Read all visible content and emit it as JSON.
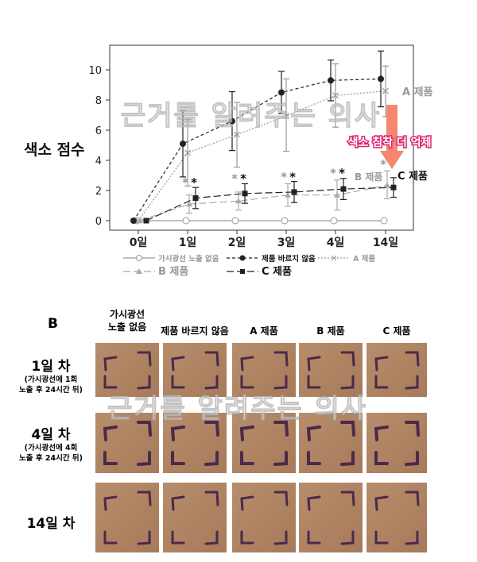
{
  "chart_data": {
    "type": "line",
    "categories": [
      "0일",
      "1일",
      "2일",
      "3일",
      "4일",
      "14일"
    ],
    "ylabel": "색소 점수",
    "ylim": [
      0,
      11
    ],
    "yticks": [
      0,
      2,
      4,
      6,
      8,
      10
    ],
    "grid": false,
    "legend_position": "bottom",
    "series": [
      {
        "name": "가시광선 노출 없음",
        "color": "#999999",
        "marker": "open-circle",
        "dash": "solid",
        "values": [
          0,
          0,
          0,
          0,
          0,
          0
        ],
        "err_low": [
          0,
          0,
          0,
          0,
          0,
          0
        ],
        "err_high": [
          0,
          0,
          0,
          0,
          0,
          0
        ]
      },
      {
        "name": "제품 바르지 않음",
        "color": "#222222",
        "marker": "filled-circle",
        "dash": "dashed",
        "values": [
          0,
          5.1,
          6.6,
          8.5,
          9.3,
          9.4
        ],
        "err_low": [
          0,
          2.9,
          4.65,
          7.1,
          7.95,
          7.55
        ],
        "err_high": [
          0,
          7.3,
          8.55,
          9.9,
          10.65,
          11.25
        ]
      },
      {
        "name": "A 제품",
        "color": "#999999",
        "marker": "x",
        "dash": "dotted",
        "values": [
          0,
          4.5,
          5.7,
          6.95,
          8.3,
          8.6
        ],
        "err_low": [
          0,
          2.3,
          3.55,
          4.6,
          6.2,
          6.9
        ],
        "err_high": [
          0,
          6.7,
          7.85,
          9.4,
          10.4,
          10.25
        ]
      },
      {
        "name": "B 제품",
        "color": "#aaaaaa",
        "marker": "triangle",
        "dash": "long-dash",
        "values": [
          0,
          1.1,
          1.3,
          1.7,
          1.7,
          2.35
        ],
        "err_low": [
          0,
          0.5,
          0.7,
          0.95,
          0.7,
          1.45
        ],
        "err_high": [
          0,
          1.7,
          1.9,
          2.45,
          2.7,
          3.3
        ]
      },
      {
        "name": "C 제품",
        "color": "#222222",
        "marker": "square",
        "dash": "long-dash",
        "values": [
          0,
          1.5,
          1.8,
          1.9,
          2.1,
          2.2
        ],
        "err_low": [
          0,
          0.8,
          1.15,
          1.2,
          1.4,
          1.55
        ],
        "err_high": [
          0,
          2.2,
          2.45,
          2.6,
          2.8,
          2.85
        ]
      }
    ],
    "annotations": {
      "significance": "*",
      "a_label": "A 제품",
      "b_label": "B 제품",
      "c_label": "C 제품",
      "arrow_text": "색소 침착 더 억제",
      "arrow_color": "#f4876e",
      "arrow_text_color": "#e0236e"
    }
  },
  "watermark": "근거를 알려주는 의사",
  "panel_b": {
    "label": "B",
    "columns": [
      "가시광선\n노출 없음",
      "제품 바르지 않음",
      "A 제품",
      "B 제품",
      "C 제품"
    ],
    "rows": [
      {
        "title": "1일 차",
        "sub1": "(가시광선에 1회",
        "sub2": "노출 후 24시간 뒤)"
      },
      {
        "title": "4일 차",
        "sub1": "(가시광선에 4회",
        "sub2": "노출 후 24시간 뒤)"
      },
      {
        "title": "14일 차",
        "sub1": "",
        "sub2": ""
      }
    ],
    "skin_color": "#b88d6b",
    "mark_color": "#4a2a4a"
  }
}
